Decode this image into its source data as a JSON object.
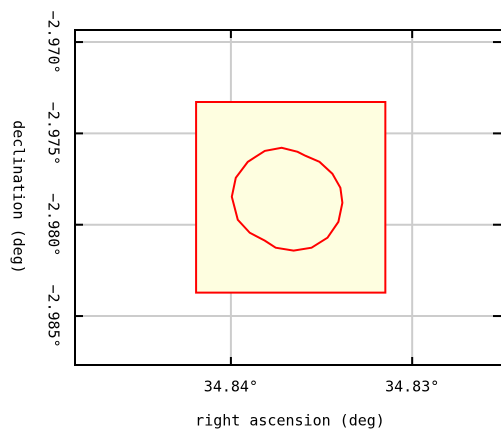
{
  "chart_data": {
    "type": "polygon",
    "xlabel": "right ascension (deg)",
    "ylabel": "declination (deg)",
    "xlim": [
      34.8486,
      34.8251
    ],
    "ylim": [
      -2.98768,
      -2.96934
    ],
    "xticks": [
      {
        "value": 34.84,
        "label": "34.84°"
      },
      {
        "value": 34.83,
        "label": "34.83°"
      }
    ],
    "yticks": [
      {
        "value": -2.97,
        "label": "−2.970°"
      },
      {
        "value": -2.975,
        "label": "−2.975°"
      },
      {
        "value": -2.98,
        "label": "−2.980°"
      },
      {
        "value": -2.985,
        "label": "−2.985°"
      }
    ],
    "grid": true,
    "series": [
      {
        "color": "#ff0000",
        "fill": "#fefee0",
        "x": [
          34.84192,
          34.83148,
          34.83148,
          34.84192
        ],
        "y": [
          -2.97328,
          -2.97328,
          -2.98372,
          -2.98372
        ]
      },
      {
        "color": "#ff0000",
        "fill": "#fefee0",
        "x": [
          34.83995,
          34.83973,
          34.83907,
          34.83813,
          34.8372,
          34.83632,
          34.83588,
          34.83511,
          34.8344,
          34.83396,
          34.83385,
          34.83407,
          34.83467,
          34.83555,
          34.83654,
          34.83753,
          34.83813,
          34.83896,
          34.83962
        ],
        "y": [
          -2.97847,
          -2.97743,
          -2.97656,
          -2.97596,
          -2.97579,
          -2.97601,
          -2.97623,
          -2.97656,
          -2.97721,
          -2.97798,
          -2.9788,
          -2.97984,
          -2.98071,
          -2.98126,
          -2.98142,
          -2.98126,
          -2.98087,
          -2.98044,
          -2.97973
        ]
      }
    ]
  }
}
